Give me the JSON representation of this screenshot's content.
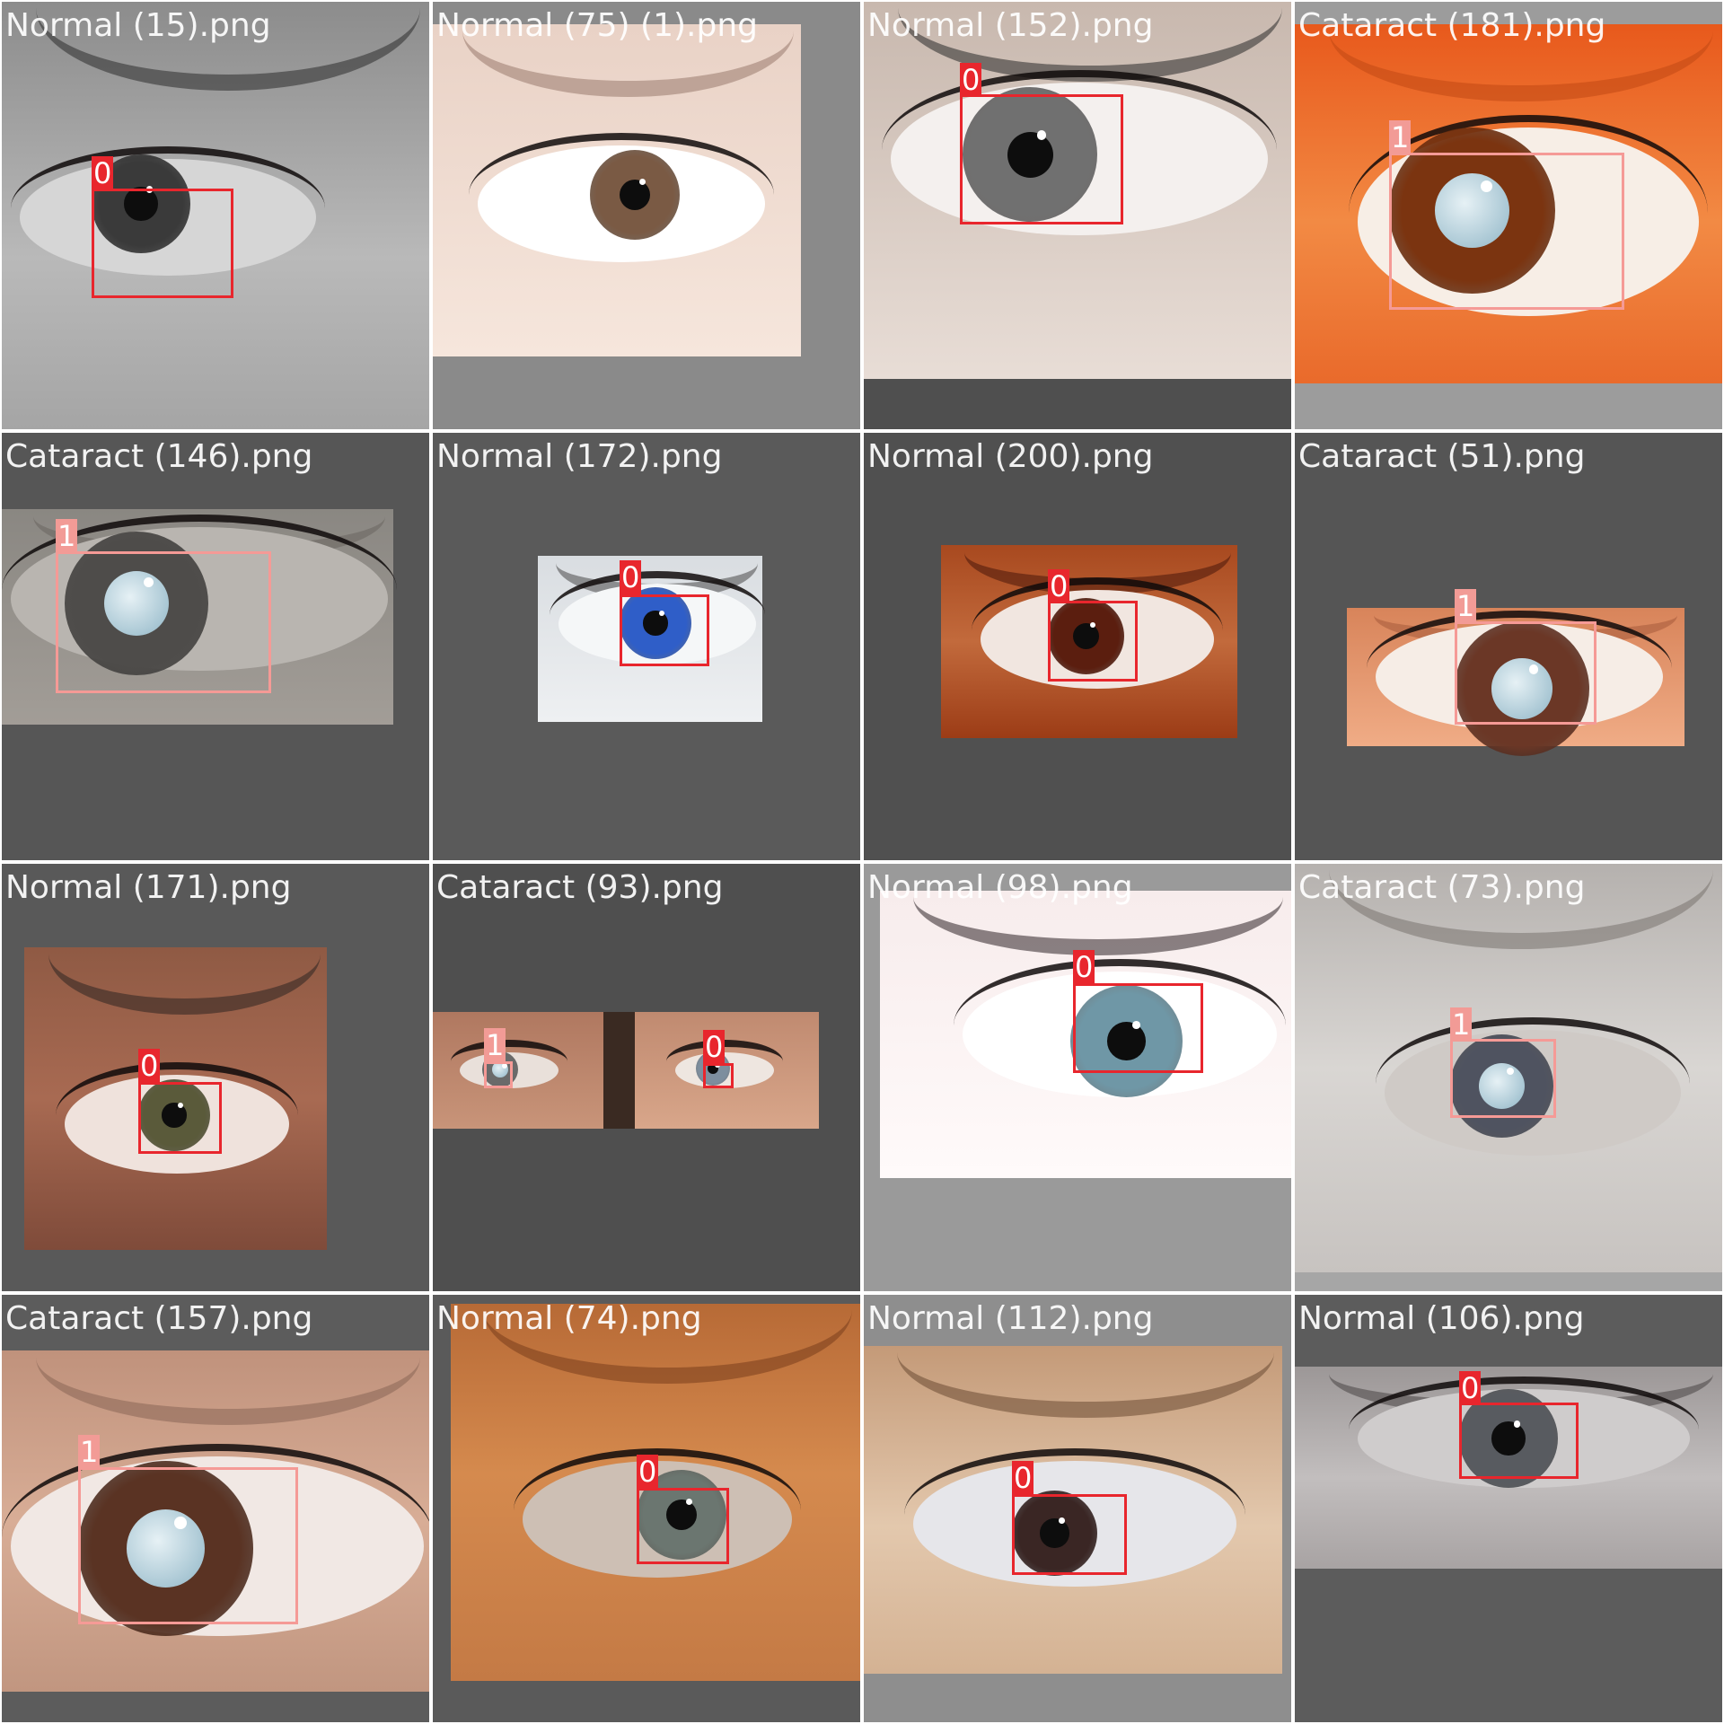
{
  "colors": {
    "class_0_box": "#e8262d",
    "class_1_box": "#f59a96",
    "class_0_label_bg": "#e8262d",
    "class_1_label_bg": "#f29b96",
    "caption_text": "#ffffff",
    "border": "#ffffff"
  },
  "tiles": [
    {
      "caption": "Normal (15).png",
      "label": "0",
      "kind": "normal",
      "bg": "#9a9a9a"
    },
    {
      "caption": "Normal (75) (1).png",
      "label": "",
      "kind": "normal",
      "bg": "#8a8a8a"
    },
    {
      "caption": "Normal (152).png",
      "label": "0",
      "kind": "normal",
      "bg": "#4f4f4f"
    },
    {
      "caption": "Cataract (181).png",
      "label": "1",
      "kind": "cataract",
      "bg": "#9c9c9c"
    },
    {
      "caption": "Cataract (146).png",
      "label": "1",
      "kind": "cataract",
      "bg": "#565656"
    },
    {
      "caption": "Normal (172).png",
      "label": "0",
      "kind": "normal",
      "bg": "#5a5a5a"
    },
    {
      "caption": "Normal (200).png",
      "label": "0",
      "kind": "normal",
      "bg": "#505050"
    },
    {
      "caption": "Cataract (51).png",
      "label": "1",
      "kind": "cataract",
      "bg": "#555555"
    },
    {
      "caption": "Normal (171).png",
      "label": "0",
      "kind": "normal",
      "bg": "#595959"
    },
    {
      "caption": "Cataract (93).png",
      "label": "",
      "kind": "pair",
      "bg": "#4f4f4f",
      "pair_labels": [
        "1",
        "0"
      ]
    },
    {
      "caption": "Normal (98).png",
      "label": "0",
      "kind": "normal",
      "bg": "#9a9a9a"
    },
    {
      "caption": "Cataract (73).png",
      "label": "1",
      "kind": "cataract",
      "bg": "#a6a6a6"
    },
    {
      "caption": "Cataract (157).png",
      "label": "1",
      "kind": "cataract",
      "bg": "#5c5c5c"
    },
    {
      "caption": "Normal (74).png",
      "label": "0",
      "kind": "normal",
      "bg": "#5a5a5a"
    },
    {
      "caption": "Normal (112).png",
      "label": "0",
      "kind": "normal",
      "bg": "#8e8e8e"
    },
    {
      "caption": "Normal (106).png",
      "label": "0",
      "kind": "normal",
      "bg": "#5c5c5c"
    }
  ]
}
